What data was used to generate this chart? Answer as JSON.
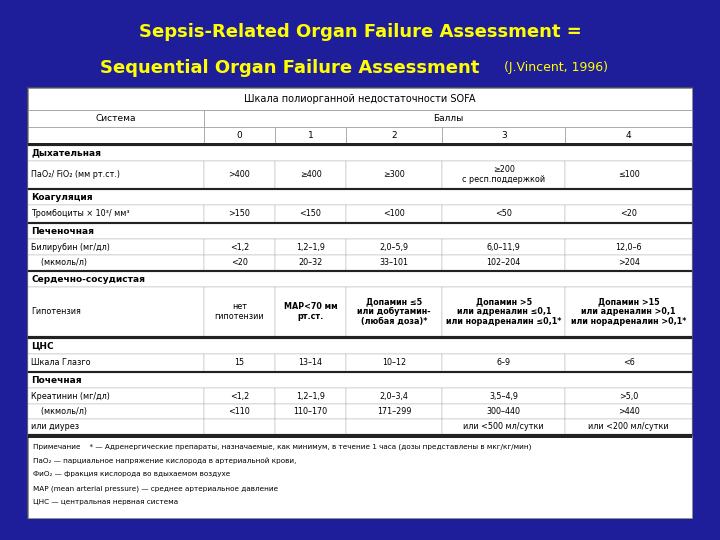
{
  "bg_color": "#1e1e9a",
  "title_line1": "Sepsis-Related Organ Failure Assessment =",
  "title_line2": "Sequential Organ Failure Assessment",
  "title_suffix": " (J.Vincent, 1996)",
  "title_color": "#ffff00",
  "title_fontsize": 13,
  "title_suffix_fontsize": 9,
  "table_header_title": "Шкала полиорганной недостаточности SOFA",
  "col_header_system": "Система",
  "col_header_scores": "Баллы",
  "col_scores": [
    "0",
    "1",
    "2",
    "3",
    "4"
  ],
  "note_lines": [
    "Примечание    * — Адренергические препараты, назначаемые, как минимум, в течение 1 часа (дозы представлены в мкг/кг/мин)",
    "ПаO₂ — парциальное напряжение кислорода в артериальной крови,",
    "ФиO₂ — фракция кислорода во вдыхаемом воздухе",
    "MAP (mean arterial pressure) — среднее артериальное давление",
    "ЦНС — центральная нервная система"
  ]
}
